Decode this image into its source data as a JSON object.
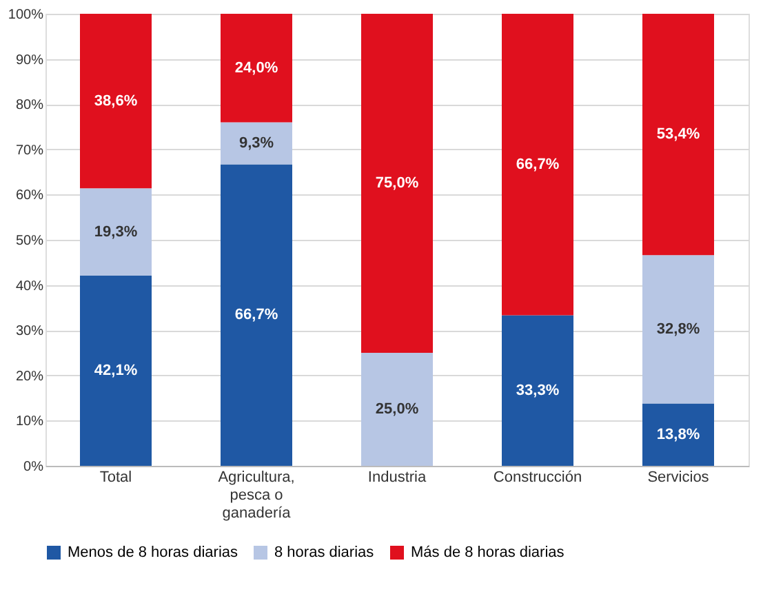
{
  "chart_data": {
    "type": "bar",
    "stacked": true,
    "categories": [
      "Total",
      "Agricultura, pesca o ganadería",
      "Industria",
      "Construcción",
      "Servicios"
    ],
    "series": [
      {
        "name": "Menos de 8 horas diarias",
        "color": "#1f58a4",
        "values": [
          42.1,
          66.7,
          null,
          33.3,
          13.8
        ],
        "value_labels": [
          "42,1%",
          "66,7%",
          null,
          "33,3%",
          "13,8%"
        ]
      },
      {
        "name": "8 horas diarias",
        "color": "#b7c6e4",
        "values": [
          19.3,
          9.3,
          25.0,
          null,
          32.8
        ],
        "value_labels": [
          "19,3%",
          "9,3%",
          "25,0%",
          null,
          "32,8%"
        ]
      },
      {
        "name": "Más de 8 horas diarias",
        "color": "#e0101e",
        "values": [
          38.6,
          24.0,
          75.0,
          66.7,
          53.4
        ],
        "value_labels": [
          "38,6%",
          "24,0%",
          "75,0%",
          "66,7%",
          "53,4%"
        ]
      }
    ],
    "ylim": [
      0,
      100
    ],
    "yticks": [
      {
        "value": 0,
        "label": "0%"
      },
      {
        "value": 10,
        "label": "10%"
      },
      {
        "value": 20,
        "label": "20%"
      },
      {
        "value": 30,
        "label": "30%"
      },
      {
        "value": 40,
        "label": "40%"
      },
      {
        "value": 50,
        "label": "50%"
      },
      {
        "value": 60,
        "label": "60%"
      },
      {
        "value": 70,
        "label": "70%"
      },
      {
        "value": 80,
        "label": "80%"
      },
      {
        "value": 90,
        "label": "90%"
      },
      {
        "value": 100,
        "label": "100%"
      }
    ],
    "grid": "y",
    "legend": "bottom"
  }
}
